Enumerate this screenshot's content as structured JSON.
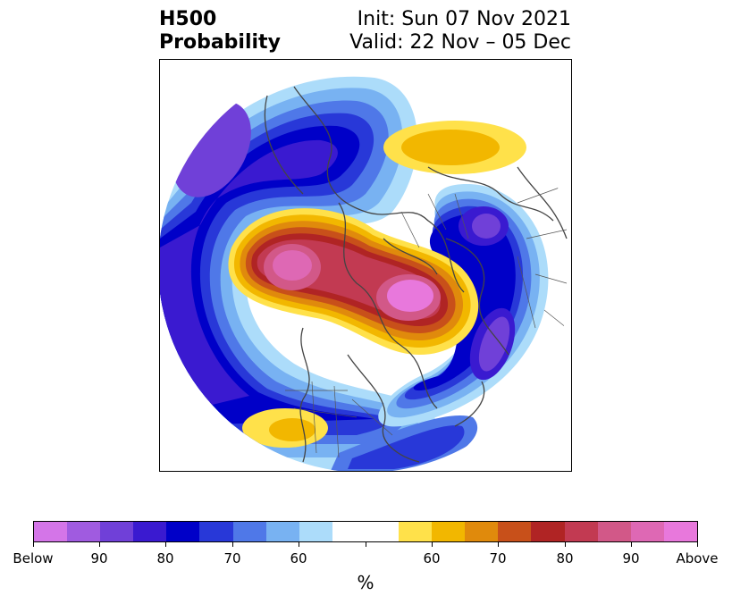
{
  "title": {
    "left_line1": "H500",
    "left_line2": "Probability",
    "right_line1": "Init: Sun 07 Nov 2021",
    "right_line2": "Valid: 22 Nov – 05 Dec"
  },
  "colorbar": {
    "unit": "%",
    "tick_labels": [
      "Below",
      "90",
      "80",
      "70",
      "60",
      "",
      "60",
      "70",
      "80",
      "90",
      "Above"
    ],
    "colors": {
      "below": [
        "#d475e8",
        "#a05be0",
        "#7040d8",
        "#3a1ad0",
        "#0000c8",
        "#2838d8",
        "#4f78e8",
        "#78b2f2",
        "#acdcfa"
      ],
      "neutral": "#ffffff",
      "above": [
        "#ffe14a",
        "#f2b700",
        "#e08a0c",
        "#c8501a",
        "#b02424",
        "#c23a52",
        "#d25888",
        "#de68b4",
        "#e878dc"
      ]
    }
  }
}
